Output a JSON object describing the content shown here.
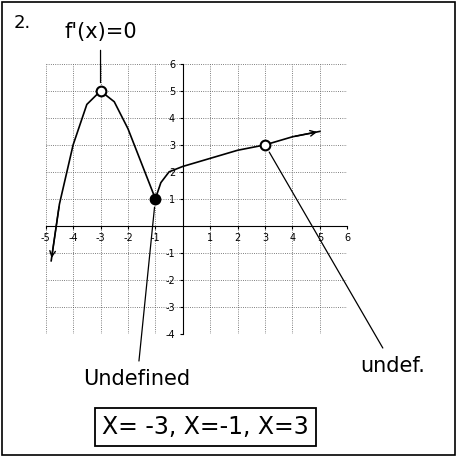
{
  "chart_data": {
    "type": "line",
    "number": "2.",
    "xlim": [
      -5,
      6
    ],
    "ylim": [
      -4,
      6
    ],
    "xticks": [
      -5,
      -4,
      -3,
      -2,
      -1,
      1,
      2,
      3,
      4,
      5,
      6
    ],
    "yticks": [
      -4,
      -3,
      -2,
      -1,
      1,
      2,
      3,
      4,
      5,
      6
    ],
    "grid": true,
    "series": [
      {
        "x": [
          -4.8,
          -4.5,
          -4,
          -3.5,
          -3,
          -2.5,
          -2,
          -1.5,
          -1
        ],
        "values": [
          -1.3,
          0.8,
          3,
          4.5,
          5,
          4.6,
          3.6,
          2.3,
          1
        ],
        "color": "#000000"
      },
      {
        "x": [
          -1,
          -0.8,
          -0.5,
          0,
          1,
          2,
          3,
          4,
          5
        ],
        "values": [
          1,
          1.6,
          2,
          2.2,
          2.5,
          2.8,
          3,
          3.3,
          3.5
        ],
        "color": "#000000"
      }
    ],
    "points": [
      {
        "x": -3,
        "y": 5,
        "filled": false
      },
      {
        "x": -1,
        "y": 1,
        "filled": true
      },
      {
        "x": 3,
        "y": 3,
        "filled": false
      }
    ],
    "annotations": [
      {
        "text": "f'(x)=0",
        "x": -3,
        "y": 5
      },
      {
        "text": "Undefined",
        "x": -1,
        "y": 1
      },
      {
        "text": "undef.",
        "x": 3,
        "y": 3
      }
    ],
    "answer": "X= -3, X=-1, X=3"
  }
}
